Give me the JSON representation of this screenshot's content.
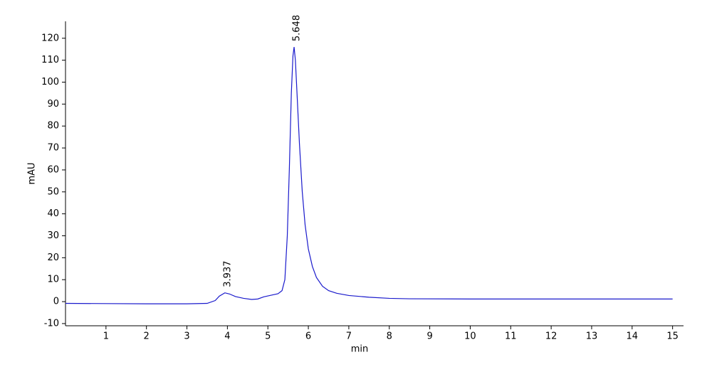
{
  "chart_data": {
    "type": "line",
    "xlabel": "min",
    "ylabel": "mAU",
    "x": [
      0,
      1,
      2,
      3,
      3.5,
      3.7,
      3.8,
      3.937,
      4.05,
      4.2,
      4.4,
      4.6,
      4.75,
      4.9,
      5.1,
      5.25,
      5.35,
      5.42,
      5.48,
      5.53,
      5.58,
      5.62,
      5.648,
      5.68,
      5.72,
      5.78,
      5.85,
      5.92,
      6.0,
      6.1,
      6.2,
      6.35,
      6.5,
      6.7,
      7.0,
      7.5,
      8.0,
      8.5,
      10,
      15
    ],
    "series": [
      {
        "color": "#1a1acc",
        "values": [
          -0.8,
          -0.9,
          -1.0,
          -1.0,
          -0.8,
          0.5,
          2.5,
          4.0,
          3.5,
          2.3,
          1.5,
          1.0,
          1.2,
          2.2,
          3.0,
          3.6,
          5,
          10,
          30,
          60,
          95,
          112,
          116,
          110,
          95,
          72,
          50,
          35,
          24,
          16,
          11,
          7,
          5,
          3.8,
          2.8,
          2.0,
          1.5,
          1.3,
          1.2,
          1.2
        ]
      }
    ],
    "annotations": [
      {
        "text": "3.937",
        "x": 3.937,
        "y": 4.0
      },
      {
        "text": "5.648",
        "x": 5.648,
        "y": 116
      }
    ],
    "xlim": [
      0,
      15.27
    ],
    "ylim": [
      -11,
      127.7
    ],
    "xticks": [
      1,
      2,
      3,
      4,
      5,
      6,
      7,
      8,
      9,
      10,
      11,
      12,
      13,
      14,
      15
    ],
    "yticks": [
      -10,
      0,
      10,
      20,
      30,
      40,
      50,
      60,
      70,
      80,
      90,
      100,
      110,
      120
    ],
    "grid": false
  }
}
